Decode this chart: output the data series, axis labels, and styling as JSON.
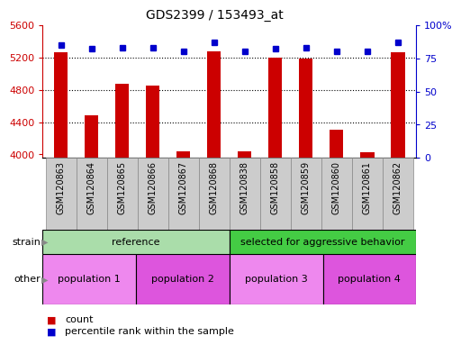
{
  "title": "GDS2399 / 153493_at",
  "samples": [
    "GSM120863",
    "GSM120864",
    "GSM120865",
    "GSM120866",
    "GSM120867",
    "GSM120868",
    "GSM120838",
    "GSM120858",
    "GSM120859",
    "GSM120860",
    "GSM120861",
    "GSM120862"
  ],
  "counts": [
    5270,
    4480,
    4880,
    4850,
    4040,
    5280,
    4040,
    5200,
    5190,
    4310,
    4030,
    5260
  ],
  "percentile_ranks": [
    85,
    82,
    83,
    83,
    80,
    87,
    80,
    82,
    83,
    80,
    80,
    87
  ],
  "ymin": 3960,
  "ymax": 5600,
  "yticks": [
    4000,
    4400,
    4800,
    5200,
    5600
  ],
  "y2min": 0,
  "y2max": 100,
  "y2ticks": [
    0,
    25,
    50,
    75,
    100
  ],
  "y2tick_labels": [
    "0",
    "25",
    "50",
    "75",
    "100%"
  ],
  "bar_color": "#cc0000",
  "dot_color": "#0000cc",
  "strain_groups": [
    {
      "label": "reference",
      "start": 0,
      "end": 6,
      "color": "#aaddaa"
    },
    {
      "label": "selected for aggressive behavior",
      "start": 6,
      "end": 12,
      "color": "#44cc44"
    }
  ],
  "other_groups": [
    {
      "label": "population 1",
      "start": 0,
      "end": 3,
      "color": "#ee88ee"
    },
    {
      "label": "population 2",
      "start": 3,
      "end": 6,
      "color": "#dd55dd"
    },
    {
      "label": "population 3",
      "start": 6,
      "end": 9,
      "color": "#ee88ee"
    },
    {
      "label": "population 4",
      "start": 9,
      "end": 12,
      "color": "#dd55dd"
    }
  ],
  "strain_label": "strain",
  "other_label": "other",
  "legend_count": "count",
  "legend_percentile": "percentile rank within the sample",
  "tick_bg_color": "#cccccc",
  "tick_border_color": "#888888"
}
